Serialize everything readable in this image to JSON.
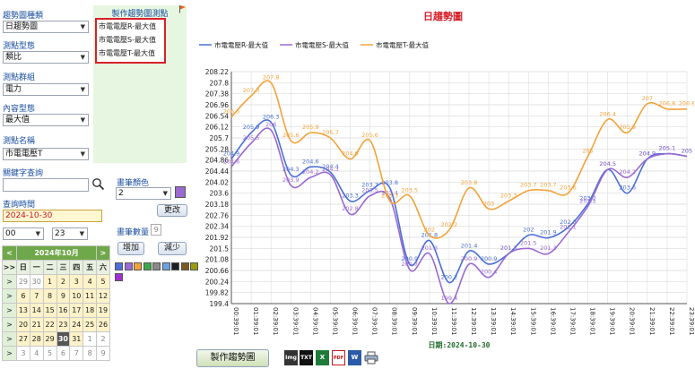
{
  "left": {
    "chart_type_label": "趨勢圖種類",
    "chart_type_value": "日趨勢圖",
    "point_type_label": "測點型態",
    "point_type_value": "類比",
    "group_label": "測點群組",
    "group_value": "電力",
    "content_type_label": "內容型態",
    "content_type_value": "最大值",
    "point_name_label": "測點名稱",
    "point_name_value": "市電電壓T",
    "keyword_label": "關鍵字查詢",
    "keyword_value": "",
    "time_label": "查詢時間",
    "date_value": "2024-10-30",
    "hour_value": "00",
    "minute_value": "23"
  },
  "points_panel": {
    "title": "製作趨勢圖測點",
    "items": [
      "市電電壓R-最大值",
      "市電電壓S-最大值",
      "市電電壓T-最大值"
    ]
  },
  "color_panel": {
    "label": "畫筆顏色",
    "value": "2",
    "change_button": "更改",
    "count_label": "畫筆數量",
    "count_value": "9",
    "add_button": "增加",
    "remove_button": "減少",
    "palette": [
      "#4f6fd8",
      "#9a6ad0",
      "#f2a33a",
      "#3da84a",
      "#8a8a8a",
      "#6aa3e0",
      "#202020",
      "#7a5a20",
      "#9a9a10",
      "#a030d0"
    ],
    "selected_color": "#9a6ad0"
  },
  "calendar": {
    "title": "2024年10月",
    "prev": "<",
    "next": ">",
    "weekdays": [
      ">>",
      "日",
      "一",
      "二",
      "三",
      "四",
      "五",
      "六"
    ],
    "rows": [
      [
        ">",
        "29",
        "30",
        "1",
        "2",
        "3",
        "4",
        "5"
      ],
      [
        ">",
        "6",
        "7",
        "8",
        "9",
        "10",
        "11",
        "12"
      ],
      [
        ">",
        "13",
        "14",
        "15",
        "16",
        "17",
        "18",
        "19"
      ],
      [
        ">",
        "20",
        "21",
        "22",
        "23",
        "24",
        "25",
        "26"
      ],
      [
        ">",
        "27",
        "28",
        "29",
        "30",
        "31",
        "1",
        "2"
      ],
      [
        ">",
        "3",
        "4",
        "5",
        "6",
        "7",
        "8",
        "9"
      ]
    ],
    "selected_day": "30"
  },
  "bottom": {
    "make_chart_button": "製作趨勢圖",
    "export_icons": [
      "Img",
      "TXT",
      "X",
      "PDF",
      "W",
      "print"
    ]
  },
  "chart_data": {
    "type": "line",
    "title": "日趨勢圖",
    "xlabel": "日期:2024-10-30",
    "ylim": [
      199.4,
      208.22
    ],
    "yticks": [
      199.4,
      199.82,
      200.24,
      200.66,
      201.08,
      201.5,
      201.92,
      202.34,
      202.76,
      203.18,
      203.6,
      204.02,
      204.44,
      204.86,
      205.28,
      205.7,
      206.12,
      206.54,
      206.96,
      207.38,
      207.8,
      208.22
    ],
    "ytick_labels": [
      "199.4",
      "199.82",
      "200.24",
      "200.66",
      "201.08",
      "201.5",
      "201.92",
      "202.34",
      "202.76",
      "203.18",
      "203.6",
      "204.02",
      "204.44",
      "204.86",
      "205.28",
      "205.7",
      "206.12",
      "206.54",
      "206.96",
      "207.38",
      "207.8",
      "208.22"
    ],
    "categories": [
      "00:39:01",
      "01:39:01",
      "02:39:01",
      "03:39:01",
      "04:39:01",
      "05:39:01",
      "06:39:01",
      "07:39:01",
      "08:39:01",
      "09:39:01",
      "10:39:01",
      "11:39:01",
      "12:39:01",
      "13:39:01",
      "14:39:01",
      "15:39:01",
      "16:39:01",
      "17:39:01",
      "18:39:01",
      "19:39:01",
      "20:39:01",
      "21:39:01",
      "22:39:01",
      "23:39:01"
    ],
    "series": [
      {
        "name": "市電電壓R-最大值",
        "color": "#4a6fd6",
        "values": [
          204.9,
          205.9,
          206.3,
          204.3,
          204.6,
          204.4,
          203.3,
          203.7,
          203.8,
          200.9,
          201.8,
          200.2,
          201.4,
          200.9,
          201.3,
          202.0,
          201.9,
          202.3,
          203.2,
          204.5,
          203.6,
          204.9,
          205.1,
          205.0
        ],
        "labels": [
          "204.9",
          "205.9",
          "206.3",
          "204.3",
          "204.6",
          "204.4",
          "203.3",
          "203.7",
          "203.8",
          "200.9",
          "201.8",
          "200.2",
          "201.4",
          "200.9",
          "201.3",
          "202",
          "201.9",
          "202.3",
          "203.2",
          "204.5",
          "203.6",
          "204.9",
          "205.1",
          "205"
        ]
      },
      {
        "name": "市電電壓S-最大值",
        "color": "#9a6ad0",
        "values": [
          204.6,
          205.5,
          206.0,
          203.9,
          204.2,
          204.3,
          202.8,
          203.5,
          203.4,
          200.7,
          201.3,
          199.4,
          200.9,
          200.4,
          201.3,
          201.5,
          201.3,
          202.1,
          203.1,
          204.5,
          204.2,
          204.9,
          205.1,
          205.0
        ],
        "labels": [
          "204.6",
          "205.5",
          "206",
          "203.9",
          "204.2",
          "204.3",
          "202.8",
          "203.5",
          "203.4",
          "200.7",
          "201.3",
          "199.4",
          "200.9",
          "200.4",
          "201.3",
          "201.5",
          "201.3",
          "202.1",
          "203.1",
          "204.5",
          "204.2",
          "204.9",
          "205.1",
          "205"
        ]
      },
      {
        "name": "市電電壓T-最大值",
        "color": "#f2a33a",
        "values": [
          206.5,
          207.3,
          207.8,
          205.6,
          205.9,
          205.7,
          204.9,
          205.6,
          203.3,
          203.5,
          202.0,
          202.2,
          203.8,
          203.0,
          203.3,
          203.7,
          203.7,
          203.6,
          205.0,
          206.4,
          205.9,
          207.0,
          206.8,
          206.8
        ],
        "labels": [
          "206.5",
          "207.3",
          "207.8",
          "205.6",
          "205.9",
          "205.7",
          "204.9",
          "205.6",
          "203.3",
          "203.5",
          "202",
          "202.2",
          "203.8",
          "203",
          "203.3",
          "203.7",
          "203.7",
          "203.6",
          "205",
          "206.4",
          "205.9",
          "207",
          "206.8",
          "206.8"
        ]
      }
    ],
    "grid": true,
    "legend": "top"
  }
}
